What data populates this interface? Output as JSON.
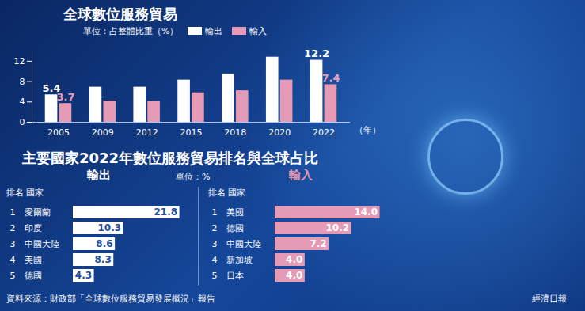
{
  "chart_data": [
    {
      "type": "bar",
      "title": "全球數位服務貿易",
      "subtitle": "單位：占整體比重（%）",
      "x_label": "（年）",
      "categories": [
        "2005",
        "2009",
        "2012",
        "2015",
        "2018",
        "2020",
        "2022"
      ],
      "series": [
        {
          "name": "輸出",
          "color": "#ffffff",
          "values": [
            5.4,
            6.9,
            6.9,
            8.3,
            9.5,
            12.8,
            12.2
          ],
          "value_labels": [
            "5.4",
            null,
            null,
            null,
            null,
            null,
            "12.2"
          ]
        },
        {
          "name": "輸入",
          "color": "#e59ab5",
          "values": [
            3.7,
            4.2,
            4.1,
            5.8,
            6.2,
            8.3,
            7.4
          ],
          "value_labels": [
            "3.7",
            null,
            null,
            null,
            null,
            null,
            "7.4"
          ]
        }
      ],
      "ylim": [
        0,
        14
      ],
      "yticks": [
        0,
        4,
        8,
        12
      ],
      "legend": "top"
    },
    {
      "type": "bar",
      "orientation": "horizontal",
      "title": "輸出",
      "rank_label": "排名",
      "category_label": "國家",
      "ranks": [
        1,
        2,
        3,
        4,
        5
      ],
      "categories": [
        "愛爾蘭",
        "印度",
        "中國大陸",
        "美國",
        "德國"
      ],
      "values": [
        21.8,
        10.3,
        8.6,
        8.3,
        4.3
      ],
      "value_labels": [
        "21.8",
        "10.3",
        "8.6",
        "8.3",
        "4.3"
      ],
      "color": "#ffffff",
      "xlim": [
        0,
        23
      ],
      "data_labels": true,
      "tick_labels": false
    },
    {
      "type": "bar",
      "orientation": "horizontal",
      "title": "輸入",
      "rank_label": "排名",
      "category_label": "國家",
      "ranks": [
        1,
        2,
        3,
        4,
        5
      ],
      "categories": [
        "美國",
        "德國",
        "中國大陸",
        "新加坡",
        "日本"
      ],
      "values": [
        14.0,
        10.2,
        7.2,
        4.0,
        4.0
      ],
      "value_labels": [
        "14.0",
        "10.2",
        "7.2",
        "4.0",
        "4.0"
      ],
      "color": "#e59ab5",
      "xlim": [
        0,
        15
      ],
      "data_labels": true,
      "tick_labels": false
    }
  ],
  "heading": "主要國家2022年數位服務貿易排名與全球占比",
  "unit": "單位：%",
  "source": "資料來源：財政部「全球數位服務貿易發展概況」報告",
  "publisher": "經濟日報"
}
